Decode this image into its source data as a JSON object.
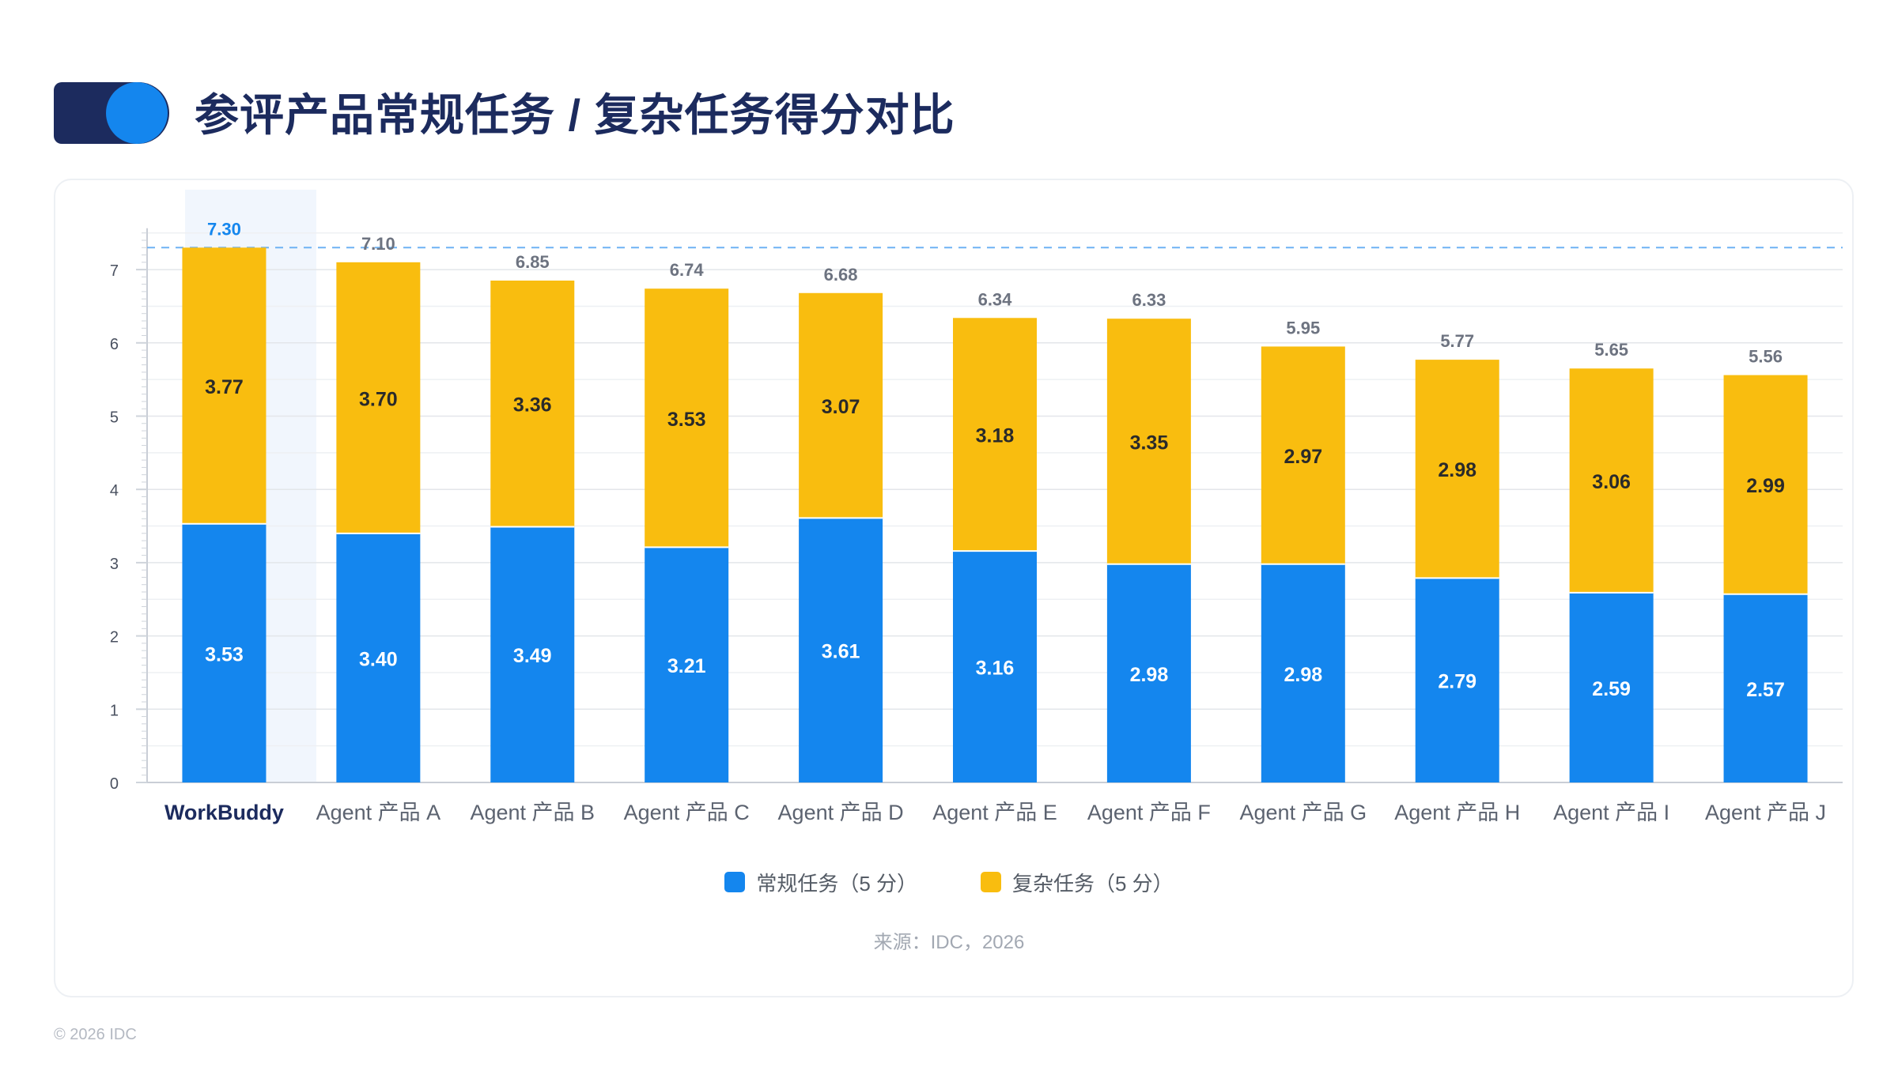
{
  "header": {
    "title": "参评产品常规任务 / 复杂任务得分对比"
  },
  "chart_data": {
    "type": "bar",
    "stacked": true,
    "categories": [
      "WorkBuddy",
      "Agent 产品 A",
      "Agent 产品 B",
      "Agent 产品 C",
      "Agent 产品 D",
      "Agent 产品 E",
      "Agent 产品 F",
      "Agent 产品 G",
      "Agent 产品 H",
      "Agent 产品 I",
      "Agent 产品 J"
    ],
    "series": [
      {
        "name": "常规任务（5 分）",
        "color": "#1486ee",
        "values": [
          3.53,
          3.4,
          3.49,
          3.21,
          3.61,
          3.16,
          2.98,
          2.98,
          2.79,
          2.59,
          2.57
        ]
      },
      {
        "name": "复杂任务（5 分）",
        "color": "#f9bd0f",
        "values": [
          3.77,
          3.7,
          3.36,
          3.53,
          3.07,
          3.18,
          3.35,
          2.97,
          2.98,
          3.06,
          2.99
        ]
      }
    ],
    "totals": [
      "7.30",
      "7.10",
      "6.85",
      "6.74",
      "6.68",
      "6.34",
      "6.33",
      "5.95",
      "5.77",
      "5.65",
      "5.56"
    ],
    "highlight_category": "WorkBuddy",
    "reference_line": 7.3,
    "ylim": [
      0,
      7.5
    ],
    "yticks": [
      0,
      1,
      2,
      3,
      4,
      5,
      6,
      7
    ],
    "grid": true,
    "legend_position": "bottom-center"
  },
  "legend": {
    "items": [
      {
        "label": "常规任务（5 分）",
        "color": "#1486ee"
      },
      {
        "label": "复杂任务（5 分）",
        "color": "#f9bd0f"
      }
    ]
  },
  "footer": {
    "source": "来源：IDC，2026",
    "copyright": "© 2026 IDC"
  }
}
